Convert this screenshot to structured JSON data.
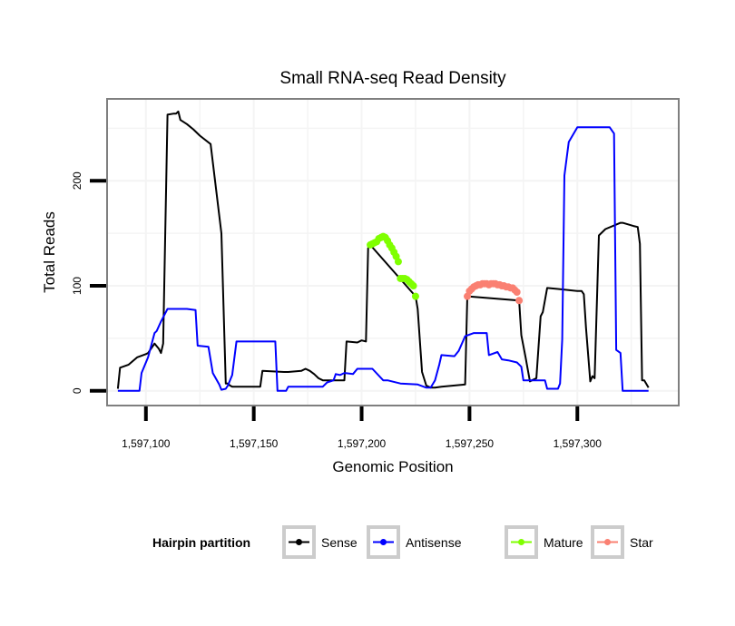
{
  "chart_data": {
    "type": "line",
    "title": "Small RNA-seq Read Density",
    "xlabel": "Genomic Position",
    "ylabel": "Total Reads",
    "xlim": [
      1597082,
      1597347
    ],
    "ylim": [
      -14,
      278
    ],
    "x_ticks": [
      1597100,
      1597150,
      1597200,
      1597250,
      1597300
    ],
    "x_tick_labels": [
      "1,597,100",
      "1,597,150",
      "1,597,200",
      "1,597,250",
      "1,597,300"
    ],
    "y_ticks": [
      0,
      100,
      200
    ],
    "y_tick_labels": [
      "0",
      "100",
      "200"
    ],
    "grid": true,
    "legend": {
      "title": "Hairpin partition",
      "position": "bottom",
      "entries": [
        "Sense",
        "Antisense",
        "Mature",
        "Star"
      ]
    },
    "colors": {
      "Sense": "#000000",
      "Antisense": "#0000ff",
      "Mature": "#7fff00",
      "Star": "#fa8072",
      "panel_border": "#7f7f7f",
      "grid": "#f4f4f4",
      "legend_key_border": "#cccccc"
    },
    "series": [
      {
        "name": "Sense",
        "style": "line",
        "x": [
          1597087,
          1597088,
          1597092,
          1597096,
          1597100,
          1597101,
          1597104,
          1597106,
          1597107,
          1597108,
          1597110,
          1597113,
          1597114,
          1597115,
          1597116,
          1597119,
          1597122,
          1597125,
          1597130,
          1597135,
          1597137,
          1597138,
          1597139,
          1597140,
          1597142,
          1597145,
          1597150,
          1597153,
          1597154,
          1597164,
          1597166,
          1597172,
          1597174,
          1597176,
          1597178,
          1597180,
          1597182,
          1597188,
          1597189,
          1597192,
          1597193,
          1597198,
          1597200,
          1597202,
          1597203,
          1597204,
          1597225,
          1597226,
          1597228,
          1597230,
          1597232,
          1597234,
          1597237,
          1597248,
          1597249,
          1597273,
          1597274,
          1597276,
          1597278,
          1597279,
          1597281,
          1597283,
          1597284,
          1597286,
          1597291,
          1597300,
          1597302,
          1597303,
          1597304,
          1597306,
          1597307,
          1597308,
          1597310,
          1597313,
          1597320,
          1597321,
          1597326,
          1597328,
          1597329,
          1597330,
          1597331,
          1597333
        ],
        "y": [
          2,
          22,
          25,
          32,
          35,
          36,
          45,
          40,
          36,
          45,
          263,
          264,
          264,
          266,
          258,
          254,
          249,
          243,
          235,
          150,
          7,
          7,
          5,
          4,
          4,
          4,
          4,
          4,
          19,
          18,
          18,
          19,
          21,
          19,
          16,
          12,
          10,
          10,
          10,
          10,
          47,
          46,
          48,
          47,
          136,
          139,
          90,
          78,
          18,
          5,
          3,
          3,
          4,
          6,
          90,
          86,
          53,
          32,
          9,
          10,
          12,
          71,
          75,
          98,
          97,
          95,
          95,
          92,
          60,
          9,
          14,
          12,
          148,
          154,
          160,
          160,
          157,
          156,
          140,
          10,
          10,
          3
        ]
      },
      {
        "name": "Antisense",
        "style": "line",
        "x": [
          1597087,
          1597097,
          1597098,
          1597101,
          1597104,
          1597105,
          1597107,
          1597110,
          1597119,
          1597123,
          1597124,
          1597129,
          1597131,
          1597134,
          1597135,
          1597137,
          1597138,
          1597140,
          1597142,
          1597143,
          1597152,
          1597160,
          1597161,
          1597165,
          1597166,
          1597182,
          1597184,
          1597187,
          1597188,
          1597190,
          1597192,
          1597196,
          1597198,
          1597205,
          1597210,
          1597212,
          1597218,
          1597226,
          1597230,
          1597232,
          1597234,
          1597236,
          1597237,
          1597243,
          1597245,
          1597248,
          1597252,
          1597258,
          1597259,
          1597263,
          1597265,
          1597268,
          1597272,
          1597274,
          1597275,
          1597285,
          1597286,
          1597291,
          1597292,
          1597293,
          1597294,
          1597296,
          1597300,
          1597315,
          1597317,
          1597318,
          1597320,
          1597321,
          1597333
        ],
        "y": [
          0,
          0,
          17,
          32,
          55,
          57,
          66,
          78,
          78,
          77,
          43,
          42,
          17,
          6,
          1,
          2,
          5,
          15,
          47,
          47,
          47,
          47,
          0,
          0,
          4,
          4,
          8,
          10,
          16,
          15,
          17,
          16,
          21,
          21,
          10,
          10,
          7,
          6,
          3,
          3,
          10,
          25,
          34,
          33,
          38,
          52,
          55,
          55,
          34,
          37,
          30,
          29,
          27,
          23,
          10,
          10,
          2,
          2,
          7,
          49,
          205,
          237,
          251,
          251,
          245,
          39,
          36,
          0,
          0
        ]
      },
      {
        "name": "Mature",
        "style": "points",
        "x": [
          1597204,
          1597205,
          1597206,
          1597207,
          1597208,
          1597209,
          1597210,
          1597211,
          1597212,
          1597213,
          1597214,
          1597215,
          1597216,
          1597217,
          1597218,
          1597219,
          1597220,
          1597221,
          1597222,
          1597223,
          1597224,
          1597225
        ],
        "y": [
          139,
          140,
          141,
          142,
          145,
          146,
          147,
          146,
          143,
          139,
          136,
          132,
          128,
          123,
          107,
          107,
          107,
          106,
          104,
          102,
          100,
          90
        ]
      },
      {
        "name": "Star",
        "style": "points",
        "x": [
          1597249,
          1597250,
          1597251,
          1597252,
          1597253,
          1597254,
          1597255,
          1597256,
          1597257,
          1597258,
          1597259,
          1597260,
          1597261,
          1597262,
          1597263,
          1597264,
          1597265,
          1597266,
          1597267,
          1597268,
          1597269,
          1597270,
          1597271,
          1597272,
          1597273
        ],
        "y": [
          90,
          95,
          97,
          99,
          100,
          101,
          101,
          102,
          102,
          102,
          101,
          102,
          102,
          102,
          101,
          101,
          100,
          100,
          99,
          99,
          98,
          98,
          96,
          94,
          86
        ]
      }
    ]
  }
}
